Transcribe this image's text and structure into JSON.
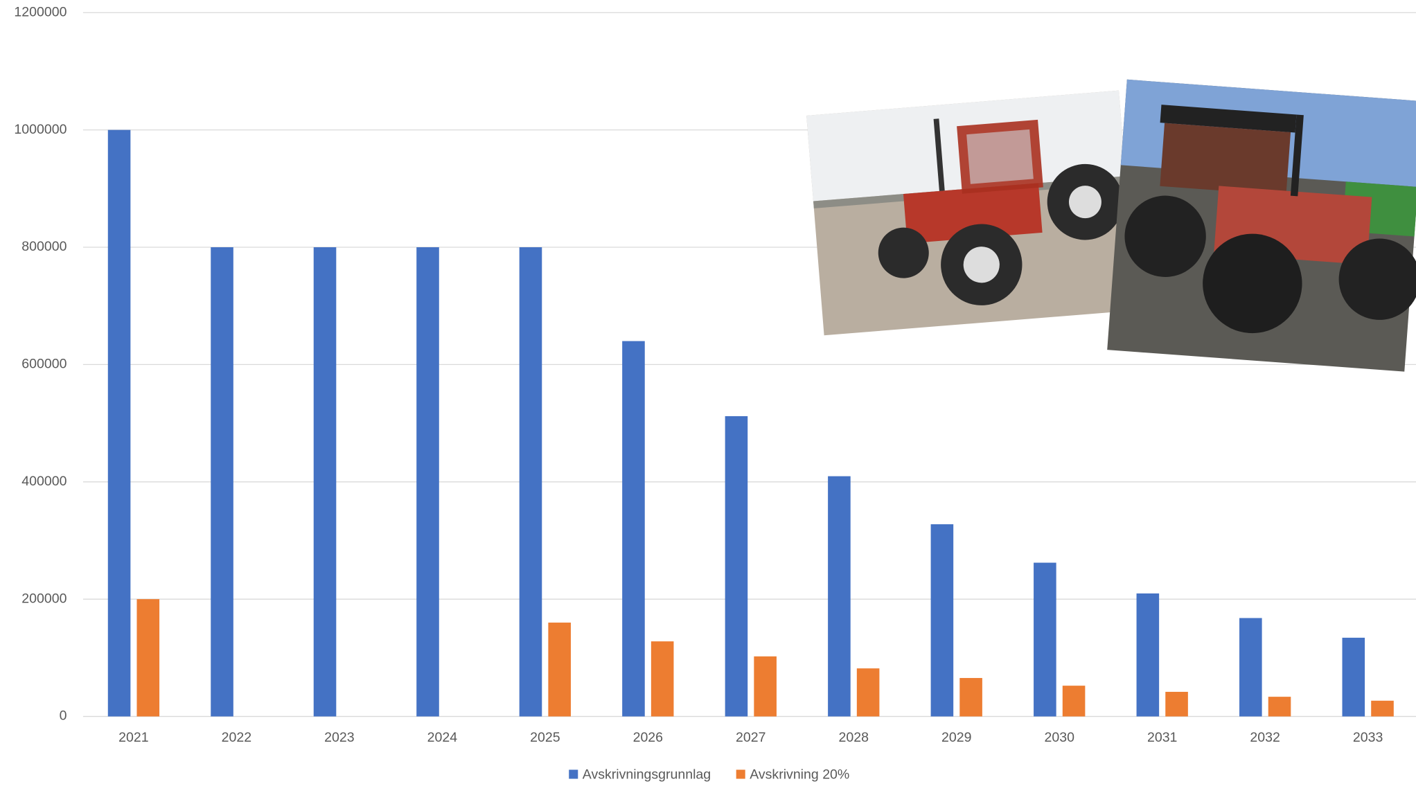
{
  "chart_data": {
    "type": "bar",
    "categories": [
      "2021",
      "2022",
      "2023",
      "2024",
      "2025",
      "2026",
      "2027",
      "2028",
      "2029",
      "2030",
      "2031",
      "2032",
      "2033"
    ],
    "series": [
      {
        "name": "Avskrivningsgrunnlag",
        "color": "#4472c4",
        "values": [
          1000000,
          800000,
          800000,
          800000,
          800000,
          640000,
          512000,
          409600,
          327680,
          262144,
          209715,
          167772,
          134218
        ]
      },
      {
        "name": "Avskrivning 20%",
        "color": "#ed7d31",
        "values": [
          200000,
          null,
          null,
          null,
          160000,
          128000,
          102400,
          81920,
          65536,
          52429,
          41943,
          33554,
          26844
        ]
      }
    ],
    "ylim": [
      0,
      1200000
    ],
    "yticks": [
      0,
      200000,
      400000,
      600000,
      800000,
      1000000,
      1200000
    ],
    "grid": true,
    "legend": "bottom"
  }
}
